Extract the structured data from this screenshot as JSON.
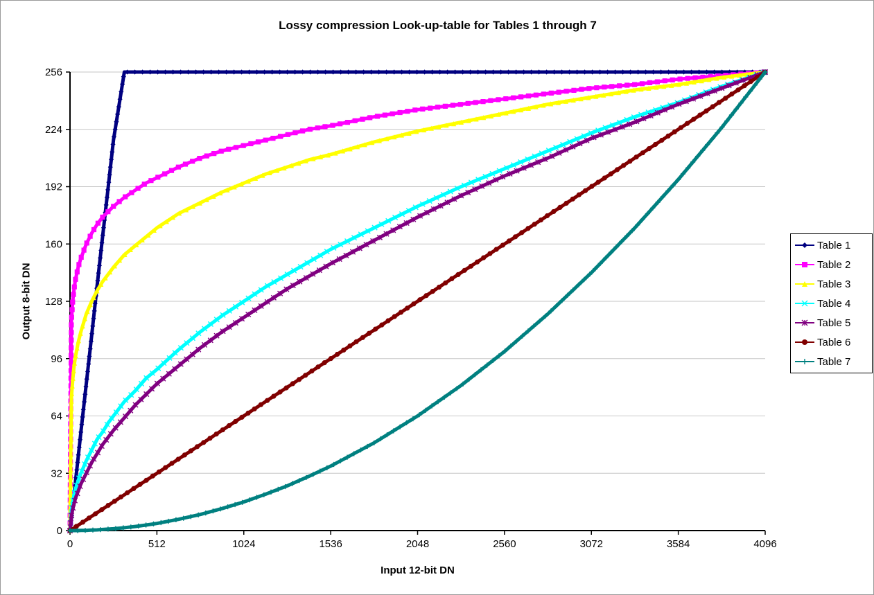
{
  "chart_data": {
    "type": "line",
    "title": "Lossy compression Look-up-table for Tables 1 through 7",
    "xlabel": "Input 12-bit DN",
    "ylabel": "Output 8-bit DN",
    "xlim": [
      0,
      4096
    ],
    "ylim": [
      0,
      256
    ],
    "xticks": [
      0,
      512,
      1024,
      1536,
      2048,
      2560,
      3072,
      3584,
      4096
    ],
    "yticks": [
      0,
      32,
      64,
      96,
      128,
      160,
      192,
      224,
      256
    ],
    "grid": "horizontal",
    "legend_position": "right",
    "background": "#ffffff",
    "gridline_color": "#c6c6c6",
    "axis_color": "#000000",
    "x": [
      0,
      8,
      16,
      24,
      32,
      48,
      64,
      96,
      128,
      160,
      192,
      224,
      256,
      320,
      384,
      448,
      512,
      640,
      768,
      896,
      1024,
      1152,
      1280,
      1408,
      1536,
      1792,
      2048,
      2304,
      2560,
      2816,
      3072,
      3328,
      3584,
      3840,
      4096
    ],
    "series": [
      {
        "name": "Table 1",
        "color": "#000080",
        "marker": "diamond",
        "values": [
          0,
          7,
          14,
          20,
          27,
          41,
          55,
          82,
          109,
          137,
          164,
          191,
          218,
          256,
          256,
          256,
          256,
          256,
          256,
          256,
          256,
          256,
          256,
          256,
          256,
          256,
          256,
          256,
          256,
          256,
          256,
          256,
          256,
          256,
          256
        ]
      },
      {
        "name": "Table 2",
        "color": "#ff00ff",
        "marker": "square",
        "values": [
          0,
          117,
          128,
          135,
          140,
          147,
          152,
          160,
          166,
          171,
          175,
          178,
          181,
          186,
          190,
          194,
          197,
          203,
          208,
          212,
          215,
          218,
          221,
          224,
          226,
          231,
          235,
          238,
          241,
          244,
          247,
          249,
          252,
          254,
          256
        ]
      },
      {
        "name": "Table 3",
        "color": "#ffff00",
        "marker": "triangle",
        "values": [
          0,
          74,
          84,
          92,
          97,
          105,
          111,
          121,
          128,
          134,
          139,
          143,
          147,
          154,
          159,
          164,
          169,
          177,
          183,
          189,
          194,
          199,
          203,
          207,
          210,
          217,
          223,
          228,
          233,
          238,
          242,
          246,
          249,
          253,
          256
        ]
      },
      {
        "name": "Table 4",
        "color": "#00ffff",
        "marker": "x",
        "values": [
          0,
          11,
          16,
          20,
          23,
          28,
          32,
          39,
          45,
          51,
          55,
          60,
          64,
          72,
          78,
          85,
          90,
          101,
          111,
          120,
          128,
          136,
          143,
          150,
          157,
          169,
          181,
          192,
          202,
          212,
          222,
          231,
          239,
          248,
          256
        ]
      },
      {
        "name": "Table 5",
        "color": "#800080",
        "marker": "star",
        "values": [
          0,
          8,
          12,
          15,
          18,
          22,
          26,
          32,
          38,
          43,
          48,
          52,
          56,
          63,
          70,
          76,
          82,
          92,
          102,
          111,
          119,
          127,
          135,
          142,
          149,
          162,
          175,
          187,
          198,
          208,
          219,
          228,
          238,
          247,
          256
        ]
      },
      {
        "name": "Table 6",
        "color": "#800000",
        "marker": "circle",
        "values": [
          0,
          0.5,
          1,
          1.5,
          2,
          3,
          4,
          6,
          8,
          10,
          12,
          14,
          16,
          20,
          24,
          28,
          32,
          40,
          48,
          56,
          64,
          72,
          80,
          88,
          96,
          112,
          128,
          144,
          160,
          176,
          192,
          208,
          224,
          240,
          256
        ]
      },
      {
        "name": "Table 7",
        "color": "#008080",
        "marker": "plus",
        "values": [
          0,
          0,
          0,
          0,
          0,
          0,
          0.1,
          0.1,
          0.3,
          0.4,
          0.6,
          0.8,
          1,
          1.6,
          2.3,
          3.1,
          4,
          6.3,
          9,
          12.3,
          16,
          20.3,
          25,
          30.3,
          36,
          49,
          64,
          81,
          100,
          121,
          144,
          169,
          196,
          225,
          256
        ]
      }
    ]
  }
}
